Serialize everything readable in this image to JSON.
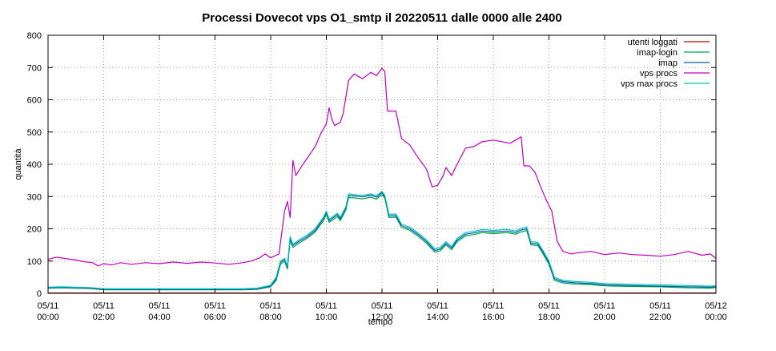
{
  "chart_data": {
    "type": "line",
    "title": "Processi Dovecot vps O1_smtp il 20220511 dalle 0000 alle 2400",
    "xlabel": "tempo",
    "ylabel": "quantità",
    "xlim": [
      0,
      24
    ],
    "ylim": [
      0,
      800
    ],
    "yticks": [
      0,
      100,
      200,
      300,
      400,
      500,
      600,
      700,
      800
    ],
    "xticks": [
      {
        "x": 0,
        "date": "05/11",
        "time": "00:00"
      },
      {
        "x": 2,
        "date": "05/11",
        "time": "02:00"
      },
      {
        "x": 4,
        "date": "05/11",
        "time": "04:00"
      },
      {
        "x": 6,
        "date": "05/11",
        "time": "06:00"
      },
      {
        "x": 8,
        "date": "05/11",
        "time": "08:00"
      },
      {
        "x": 10,
        "date": "05/11",
        "time": "10:00"
      },
      {
        "x": 12,
        "date": "05/11",
        "time": "12:00"
      },
      {
        "x": 14,
        "date": "05/11",
        "time": "14:00"
      },
      {
        "x": 16,
        "date": "05/11",
        "time": "16:00"
      },
      {
        "x": 18,
        "date": "05/11",
        "time": "18:00"
      },
      {
        "x": 20,
        "date": "05/11",
        "time": "20:00"
      },
      {
        "x": 22,
        "date": "05/11",
        "time": "22:00"
      },
      {
        "x": 24,
        "date": "05/12",
        "time": "00:00"
      }
    ],
    "grid": true,
    "legend_position": "top-right",
    "series": [
      {
        "name": "utenti loggati",
        "color": "#c00000",
        "points": [
          [
            0,
            1
          ],
          [
            24,
            1
          ]
        ]
      },
      {
        "name": "imap-login",
        "color": "#00a050",
        "points": [
          [
            0,
            16
          ],
          [
            0.5,
            17
          ],
          [
            1,
            16
          ],
          [
            1.5,
            15
          ],
          [
            2,
            11
          ],
          [
            3,
            11
          ],
          [
            4,
            11
          ],
          [
            5,
            11
          ],
          [
            6,
            11
          ],
          [
            7,
            11
          ],
          [
            7.5,
            12
          ],
          [
            8,
            20
          ],
          [
            8.2,
            40
          ],
          [
            8.35,
            90
          ],
          [
            8.5,
            100
          ],
          [
            8.6,
            75
          ],
          [
            8.7,
            165
          ],
          [
            8.8,
            142
          ],
          [
            9,
            155
          ],
          [
            9.3,
            170
          ],
          [
            9.6,
            190
          ],
          [
            9.9,
            225
          ],
          [
            10,
            245
          ],
          [
            10.1,
            220
          ],
          [
            10.4,
            238
          ],
          [
            10.5,
            225
          ],
          [
            10.7,
            258
          ],
          [
            10.8,
            297
          ],
          [
            11,
            296
          ],
          [
            11.3,
            293
          ],
          [
            11.6,
            298
          ],
          [
            11.8,
            292
          ],
          [
            12,
            306
          ],
          [
            12.1,
            295
          ],
          [
            12.25,
            235
          ],
          [
            12.5,
            236
          ],
          [
            12.7,
            205
          ],
          [
            13,
            195
          ],
          [
            13.3,
            177
          ],
          [
            13.6,
            155
          ],
          [
            13.9,
            128
          ],
          [
            14.1,
            132
          ],
          [
            14.3,
            150
          ],
          [
            14.5,
            135
          ],
          [
            14.7,
            160
          ],
          [
            15,
            178
          ],
          [
            15.3,
            182
          ],
          [
            15.6,
            188
          ],
          [
            16,
            185
          ],
          [
            16.5,
            188
          ],
          [
            16.8,
            183
          ],
          [
            17,
            190
          ],
          [
            17.2,
            195
          ],
          [
            17.35,
            150
          ],
          [
            17.6,
            148
          ],
          [
            17.8,
            120
          ],
          [
            18,
            90
          ],
          [
            18.2,
            40
          ],
          [
            18.5,
            32
          ],
          [
            19,
            28
          ],
          [
            19.5,
            27
          ],
          [
            20,
            23
          ],
          [
            21,
            21
          ],
          [
            22,
            20
          ],
          [
            23,
            17
          ],
          [
            23.8,
            16
          ],
          [
            24,
            18
          ]
        ]
      },
      {
        "name": "imap",
        "color": "#0060a0",
        "points": [
          [
            0,
            17
          ],
          [
            0.5,
            18
          ],
          [
            1,
            17
          ],
          [
            1.5,
            16
          ],
          [
            2,
            12
          ],
          [
            3,
            12
          ],
          [
            4,
            12
          ],
          [
            5,
            12
          ],
          [
            6,
            12
          ],
          [
            7,
            12
          ],
          [
            7.5,
            13
          ],
          [
            8,
            22
          ],
          [
            8.2,
            45
          ],
          [
            8.35,
            95
          ],
          [
            8.5,
            105
          ],
          [
            8.6,
            80
          ],
          [
            8.7,
            170
          ],
          [
            8.8,
            148
          ],
          [
            9,
            160
          ],
          [
            9.3,
            175
          ],
          [
            9.6,
            195
          ],
          [
            9.9,
            232
          ],
          [
            10,
            250
          ],
          [
            10.1,
            225
          ],
          [
            10.4,
            244
          ],
          [
            10.5,
            230
          ],
          [
            10.7,
            264
          ],
          [
            10.8,
            303
          ],
          [
            11,
            302
          ],
          [
            11.3,
            299
          ],
          [
            11.6,
            304
          ],
          [
            11.8,
            298
          ],
          [
            12,
            312
          ],
          [
            12.1,
            300
          ],
          [
            12.25,
            240
          ],
          [
            12.5,
            241
          ],
          [
            12.7,
            210
          ],
          [
            13,
            200
          ],
          [
            13.3,
            182
          ],
          [
            13.6,
            160
          ],
          [
            13.9,
            133
          ],
          [
            14.1,
            137
          ],
          [
            14.3,
            155
          ],
          [
            14.5,
            140
          ],
          [
            14.7,
            165
          ],
          [
            15,
            183
          ],
          [
            15.3,
            187
          ],
          [
            15.6,
            193
          ],
          [
            16,
            190
          ],
          [
            16.5,
            193
          ],
          [
            16.8,
            188
          ],
          [
            17,
            196
          ],
          [
            17.2,
            200
          ],
          [
            17.35,
            155
          ],
          [
            17.6,
            153
          ],
          [
            17.8,
            125
          ],
          [
            18,
            95
          ],
          [
            18.2,
            45
          ],
          [
            18.5,
            36
          ],
          [
            19,
            32
          ],
          [
            19.5,
            30
          ],
          [
            20,
            26
          ],
          [
            21,
            24
          ],
          [
            22,
            22
          ],
          [
            23,
            20
          ],
          [
            23.8,
            19
          ],
          [
            24,
            20
          ]
        ]
      },
      {
        "name": "vps procs",
        "color": "#c000c0",
        "points": [
          [
            0,
            105
          ],
          [
            0.3,
            112
          ],
          [
            0.6,
            108
          ],
          [
            1,
            103
          ],
          [
            1.3,
            98
          ],
          [
            1.6,
            95
          ],
          [
            1.8,
            85
          ],
          [
            2,
            92
          ],
          [
            2.3,
            88
          ],
          [
            2.6,
            95
          ],
          [
            3,
            90
          ],
          [
            3.5,
            95
          ],
          [
            4,
            92
          ],
          [
            4.5,
            97
          ],
          [
            5,
            93
          ],
          [
            5.5,
            97
          ],
          [
            6,
            94
          ],
          [
            6.5,
            90
          ],
          [
            7,
            95
          ],
          [
            7.3,
            100
          ],
          [
            7.6,
            110
          ],
          [
            7.8,
            122
          ],
          [
            8,
            110
          ],
          [
            8.3,
            122
          ],
          [
            8.5,
            255
          ],
          [
            8.6,
            285
          ],
          [
            8.7,
            235
          ],
          [
            8.8,
            412
          ],
          [
            8.9,
            365
          ],
          [
            9.1,
            392
          ],
          [
            9.4,
            430
          ],
          [
            9.6,
            455
          ],
          [
            9.8,
            495
          ],
          [
            10,
            525
          ],
          [
            10.1,
            575
          ],
          [
            10.2,
            540
          ],
          [
            10.3,
            520
          ],
          [
            10.5,
            530
          ],
          [
            10.6,
            555
          ],
          [
            10.8,
            660
          ],
          [
            11,
            680
          ],
          [
            11.3,
            665
          ],
          [
            11.6,
            685
          ],
          [
            11.8,
            675
          ],
          [
            12,
            698
          ],
          [
            12.1,
            688
          ],
          [
            12.2,
            565
          ],
          [
            12.5,
            565
          ],
          [
            12.7,
            480
          ],
          [
            13,
            460
          ],
          [
            13.3,
            420
          ],
          [
            13.6,
            385
          ],
          [
            13.8,
            330
          ],
          [
            14,
            335
          ],
          [
            14.2,
            365
          ],
          [
            14.3,
            390
          ],
          [
            14.5,
            365
          ],
          [
            14.7,
            400
          ],
          [
            15,
            450
          ],
          [
            15.3,
            455
          ],
          [
            15.6,
            470
          ],
          [
            16,
            475
          ],
          [
            16.3,
            470
          ],
          [
            16.6,
            465
          ],
          [
            16.9,
            480
          ],
          [
            17,
            485
          ],
          [
            17.1,
            395
          ],
          [
            17.3,
            395
          ],
          [
            17.5,
            375
          ],
          [
            17.7,
            330
          ],
          [
            17.9,
            290
          ],
          [
            18.1,
            255
          ],
          [
            18.3,
            160
          ],
          [
            18.5,
            130
          ],
          [
            18.8,
            122
          ],
          [
            19,
            125
          ],
          [
            19.5,
            130
          ],
          [
            20,
            120
          ],
          [
            20.5,
            125
          ],
          [
            21,
            120
          ],
          [
            21.5,
            118
          ],
          [
            22,
            115
          ],
          [
            22.5,
            120
          ],
          [
            23,
            130
          ],
          [
            23.5,
            118
          ],
          [
            23.8,
            122
          ],
          [
            24,
            108
          ]
        ]
      },
      {
        "name": "vps max procs",
        "color": "#00c0c0",
        "points": [
          [
            0,
            19
          ],
          [
            0.5,
            20
          ],
          [
            1,
            19
          ],
          [
            1.5,
            18
          ],
          [
            2,
            14
          ],
          [
            3,
            14
          ],
          [
            4,
            14
          ],
          [
            5,
            14
          ],
          [
            6,
            14
          ],
          [
            7,
            14
          ],
          [
            7.5,
            16
          ],
          [
            8,
            25
          ],
          [
            8.2,
            50
          ],
          [
            8.35,
            100
          ],
          [
            8.5,
            108
          ],
          [
            8.6,
            85
          ],
          [
            8.7,
            176
          ],
          [
            8.8,
            152
          ],
          [
            9,
            165
          ],
          [
            9.3,
            180
          ],
          [
            9.6,
            200
          ],
          [
            9.9,
            236
          ],
          [
            10,
            255
          ],
          [
            10.1,
            230
          ],
          [
            10.4,
            248
          ],
          [
            10.5,
            235
          ],
          [
            10.7,
            268
          ],
          [
            10.8,
            308
          ],
          [
            11,
            306
          ],
          [
            11.3,
            303
          ],
          [
            11.6,
            308
          ],
          [
            11.8,
            302
          ],
          [
            12,
            316
          ],
          [
            12.1,
            304
          ],
          [
            12.25,
            245
          ],
          [
            12.5,
            246
          ],
          [
            12.7,
            215
          ],
          [
            13,
            205
          ],
          [
            13.3,
            187
          ],
          [
            13.6,
            165
          ],
          [
            13.9,
            138
          ],
          [
            14.1,
            142
          ],
          [
            14.3,
            160
          ],
          [
            14.5,
            145
          ],
          [
            14.7,
            170
          ],
          [
            15,
            188
          ],
          [
            15.3,
            192
          ],
          [
            15.6,
            198
          ],
          [
            16,
            195
          ],
          [
            16.5,
            198
          ],
          [
            16.8,
            193
          ],
          [
            17,
            201
          ],
          [
            17.2,
            206
          ],
          [
            17.35,
            160
          ],
          [
            17.6,
            158
          ],
          [
            17.8,
            130
          ],
          [
            18,
            100
          ],
          [
            18.2,
            50
          ],
          [
            18.5,
            40
          ],
          [
            19,
            36
          ],
          [
            19.5,
            34
          ],
          [
            20,
            30
          ],
          [
            21,
            28
          ],
          [
            22,
            26
          ],
          [
            23,
            24
          ],
          [
            23.8,
            22
          ],
          [
            24,
            23
          ]
        ]
      }
    ]
  }
}
